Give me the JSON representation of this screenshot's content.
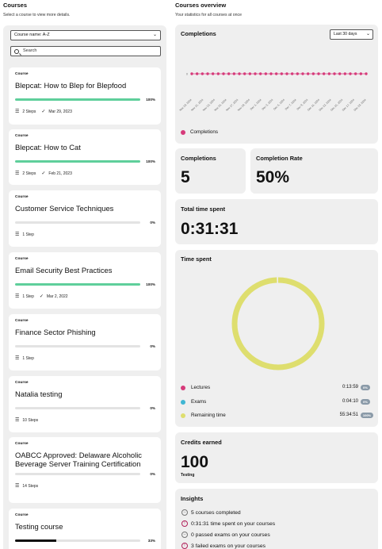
{
  "left": {
    "title": "Courses",
    "subtitle": "Select a course to view more details.",
    "sort_value": "Course name: A-Z",
    "search_placeholder": "Search",
    "courses": [
      {
        "kind": "Course",
        "title": "Blepcat: How to Blep for Blepfood",
        "progress": 100,
        "pct": "100%",
        "steps": "2 Steps",
        "date": "Mar 29, 2023"
      },
      {
        "kind": "Course",
        "title": "Blepcat: How to Cat",
        "progress": 100,
        "pct": "100%",
        "steps": "2 Steps",
        "date": "Feb 21, 2023"
      },
      {
        "kind": "Course",
        "title": "Customer Service Techniques",
        "progress": 0,
        "pct": "0%",
        "steps": "1 Step",
        "date": ""
      },
      {
        "kind": "Course",
        "title": "Email Security Best Practices",
        "progress": 100,
        "pct": "100%",
        "steps": "1 Step",
        "date": "Mar 2, 2022"
      },
      {
        "kind": "Course",
        "title": "Finance Sector Phishing",
        "progress": 0,
        "pct": "0%",
        "steps": "1 Step",
        "date": ""
      },
      {
        "kind": "Course",
        "title": "Natalia testing",
        "progress": 0,
        "pct": "0%",
        "steps": "10 Steps",
        "date": ""
      },
      {
        "kind": "Course",
        "title": "OABCC Approved: Delaware Alcoholic Beverage Server Training Certification",
        "progress": 0,
        "pct": "0%",
        "steps": "14 Steps",
        "date": ""
      },
      {
        "kind": "Course",
        "title": "Testing course",
        "progress": 33,
        "pct": "33%",
        "steps": "",
        "date": ""
      }
    ]
  },
  "right": {
    "title": "Courses overview",
    "subtitle": "Your statistics for all courses at once",
    "completions_chart": {
      "heading": "Completions",
      "range_value": "Last 30 days",
      "legend": "Completions",
      "y_label": "0",
      "dates": [
        "Nov 19, 2024",
        "Nov 21, 2024",
        "Nov 23, 2024",
        "Nov 25, 2024",
        "Nov 27, 2024",
        "Nov 29, 2024",
        "Dec 1, 2024",
        "Dec 3, 2024",
        "Dec 5, 2024",
        "Dec 7, 2024",
        "Dec 9, 2024",
        "Dec 11, 2024",
        "Dec 13, 2024",
        "Dec 15, 2024",
        "Dec 17, 2024",
        "Dec 19, 2024"
      ],
      "point_color": "#d63a7a"
    },
    "completions": {
      "label": "Completions",
      "value": "5"
    },
    "completion_rate": {
      "label": "Completion Rate",
      "value": "50%"
    },
    "total_time": {
      "label": "Total time spent",
      "value": "0:31:31"
    },
    "time_spent": {
      "heading": "Time spent",
      "items": [
        {
          "label": "Lectures",
          "value": "0:13:59",
          "pct": "0%",
          "color": "#d63a7a"
        },
        {
          "label": "Exams",
          "value": "0:04:10",
          "pct": "0%",
          "color": "#3fb6d3"
        },
        {
          "label": "Remaining time",
          "value": "55:34:51",
          "pct": "100%",
          "color": "#dede6e"
        }
      ],
      "ring_color": "#dede6e"
    },
    "credits": {
      "label": "Credits earned",
      "value": "100",
      "unit": "Testing"
    },
    "insights": {
      "heading": "Insights",
      "items": [
        "5 courses completed",
        "0:31:31 time spent on your courses",
        "0 passed exams on your courses",
        "3 failed exams on your courses"
      ]
    }
  },
  "chart_data": {
    "type": "line",
    "x": [
      "Nov 19, 2024",
      "Nov 21, 2024",
      "Nov 23, 2024",
      "Nov 25, 2024",
      "Nov 27, 2024",
      "Nov 29, 2024",
      "Dec 1, 2024",
      "Dec 3, 2024",
      "Dec 5, 2024",
      "Dec 7, 2024",
      "Dec 9, 2024",
      "Dec 11, 2024",
      "Dec 13, 2024",
      "Dec 15, 2024",
      "Dec 17, 2024",
      "Dec 19, 2024"
    ],
    "series": [
      {
        "name": "Completions",
        "values": [
          0,
          0,
          0,
          0,
          0,
          0,
          0,
          0,
          0,
          0,
          0,
          0,
          0,
          0,
          0,
          0
        ]
      }
    ],
    "legend": "bottom-left"
  }
}
